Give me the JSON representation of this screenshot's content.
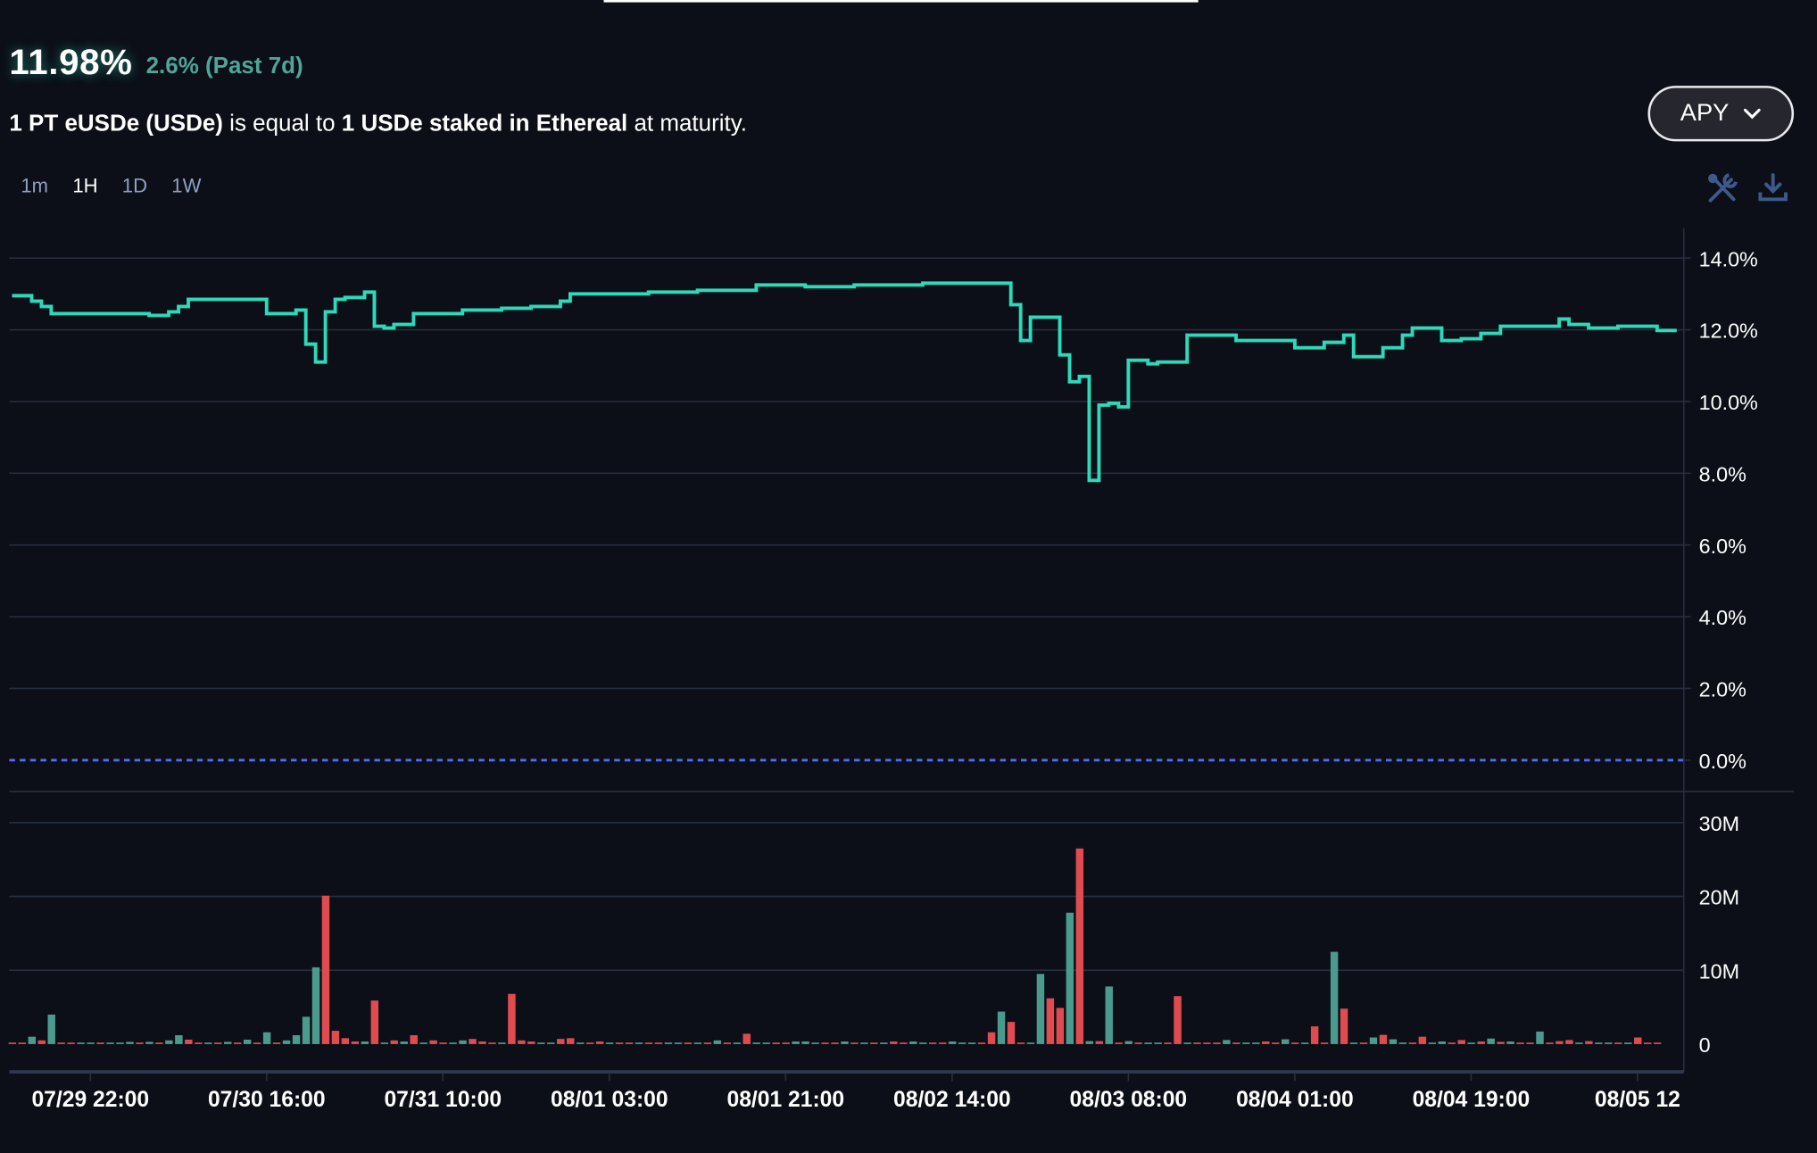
{
  "header": {
    "current_apy": "11.98%",
    "change": "2.6% (Past 7d)",
    "description": {
      "part1": "1 PT eUSDe (USDe)",
      "part2": " is equal to ",
      "part3": "1 USDe staked in Ethereal",
      "part4": " at maturity."
    }
  },
  "intervals": [
    {
      "label": "1m",
      "active": false
    },
    {
      "label": "1H",
      "active": true
    },
    {
      "label": "1D",
      "active": false
    },
    {
      "label": "1W",
      "active": false
    }
  ],
  "metric_select": {
    "label": "APY",
    "icon": "chevron-down-icon"
  },
  "toolbar": {
    "tools_icon": "tools-icon",
    "download_icon": "download-icon"
  },
  "colors": {
    "background": "#0c0f17",
    "line": "#2dd9b8",
    "bar_up": "#4a9b8e",
    "bar_down": "#e04b4f",
    "zero_line": "#4f6ef0",
    "grid": "#262d3d",
    "icon": "#3d5a8a"
  },
  "chart_data": [
    {
      "type": "line",
      "step": true,
      "ylim": [
        0,
        14
      ],
      "y_ticks": [
        "14.0%",
        "12.0%",
        "10.0%",
        "8.0%",
        "6.0%",
        "4.0%",
        "2.0%",
        "0.0%"
      ],
      "y_tick_values": [
        14,
        12,
        10,
        8,
        6,
        4,
        2,
        0
      ],
      "grid": true,
      "points": [
        [
          "07/29 14:00",
          12.95
        ],
        [
          "07/29 16:00",
          12.8
        ],
        [
          "07/29 17:00",
          12.65
        ],
        [
          "07/29 18:00",
          12.45
        ],
        [
          "07/30 04:00",
          12.4
        ],
        [
          "07/30 06:00",
          12.5
        ],
        [
          "07/30 07:00",
          12.65
        ],
        [
          "07/30 08:00",
          12.85
        ],
        [
          "07/30 12:00",
          12.85
        ],
        [
          "07/30 16:00",
          12.45
        ],
        [
          "07/30 19:00",
          12.55
        ],
        [
          "07/30 20:00",
          11.6
        ],
        [
          "07/30 21:00",
          11.1
        ],
        [
          "07/30 22:00",
          12.5
        ],
        [
          "07/30 23:00",
          12.85
        ],
        [
          "07/31 00:00",
          12.9
        ],
        [
          "07/31 02:00",
          13.05
        ],
        [
          "07/31 03:00",
          12.1
        ],
        [
          "07/31 04:00",
          12.05
        ],
        [
          "07/31 05:00",
          12.15
        ],
        [
          "07/31 07:00",
          12.45
        ],
        [
          "07/31 12:00",
          12.55
        ],
        [
          "07/31 16:00",
          12.6
        ],
        [
          "07/31 19:00",
          12.65
        ],
        [
          "07/31 22:00",
          12.8
        ],
        [
          "07/31 23:00",
          13.0
        ],
        [
          "08/01 07:00",
          13.05
        ],
        [
          "08/01 12:00",
          13.1
        ],
        [
          "08/01 18:00",
          13.25
        ],
        [
          "08/01 23:00",
          13.2
        ],
        [
          "08/02 04:00",
          13.25
        ],
        [
          "08/02 11:00",
          13.3
        ],
        [
          "08/02 19:00",
          13.3
        ],
        [
          "08/02 20:00",
          12.7
        ],
        [
          "08/02 21:00",
          11.7
        ],
        [
          "08/02 22:00",
          12.35
        ],
        [
          "08/03 01:00",
          11.3
        ],
        [
          "08/03 02:00",
          10.55
        ],
        [
          "08/03 03:00",
          10.7
        ],
        [
          "08/03 04:00",
          7.8
        ],
        [
          "08/03 05:00",
          9.9
        ],
        [
          "08/03 06:00",
          9.95
        ],
        [
          "08/03 07:00",
          9.85
        ],
        [
          "08/03 08:00",
          11.15
        ],
        [
          "08/03 10:00",
          11.05
        ],
        [
          "08/03 11:00",
          11.1
        ],
        [
          "08/03 14:00",
          11.85
        ],
        [
          "08/03 19:00",
          11.7
        ],
        [
          "08/03 22:00",
          11.7
        ],
        [
          "08/04 01:00",
          11.5
        ],
        [
          "08/04 04:00",
          11.65
        ],
        [
          "08/04 06:00",
          11.85
        ],
        [
          "08/04 07:00",
          11.25
        ],
        [
          "08/04 10:00",
          11.5
        ],
        [
          "08/04 12:00",
          11.85
        ],
        [
          "08/04 13:00",
          12.05
        ],
        [
          "08/04 16:00",
          11.7
        ],
        [
          "08/04 18:00",
          11.75
        ],
        [
          "08/04 20:00",
          11.9
        ],
        [
          "08/04 22:00",
          12.1
        ],
        [
          "08/05 04:00",
          12.3
        ],
        [
          "08/05 05:00",
          12.15
        ],
        [
          "08/05 07:00",
          12.05
        ],
        [
          "08/05 10:00",
          12.1
        ],
        [
          "08/05 14:00",
          11.98
        ],
        [
          "08/05 16:00",
          11.98
        ]
      ]
    },
    {
      "type": "bar",
      "ylim": [
        0,
        30
      ],
      "y_ticks": [
        "30M",
        "20M",
        "10M",
        "0"
      ],
      "y_tick_values": [
        30,
        20,
        10,
        0
      ],
      "unit": "M",
      "values": [
        0.2,
        0.2,
        1.0,
        0.5,
        4.0,
        0.2,
        0.2,
        0.2,
        0.2,
        0.2,
        0.2,
        0.2,
        0.3,
        0.2,
        0.3,
        0.2,
        0.5,
        1.2,
        0.6,
        0.2,
        0.2,
        0.2,
        0.3,
        0.2,
        0.6,
        0.2,
        1.6,
        0.2,
        0.5,
        1.2,
        3.7,
        10.4,
        20.1,
        1.8,
        0.8,
        0.35,
        0.35,
        5.9,
        0.2,
        0.5,
        0.35,
        1.2,
        0.2,
        0.5,
        0.2,
        0.2,
        0.5,
        0.7,
        0.35,
        0.2,
        0.2,
        6.8,
        0.5,
        0.35,
        0.2,
        0.2,
        0.7,
        0.8,
        0.2,
        0.2,
        0.35,
        0.2,
        0.2,
        0.2,
        0.2,
        0.2,
        0.2,
        0.2,
        0.2,
        0.2,
        0.2,
        0.2,
        0.5,
        0.2,
        0.2,
        1.4,
        0.2,
        0.2,
        0.2,
        0.2,
        0.35,
        0.35,
        0.2,
        0.2,
        0.2,
        0.35,
        0.2,
        0.2,
        0.2,
        0.2,
        0.35,
        0.2,
        0.35,
        0.2,
        0.2,
        0.2,
        0.35,
        0.2,
        0.2,
        0.2,
        1.6,
        4.4,
        3.0,
        0.2,
        0.2,
        9.5,
        6.2,
        4.9,
        17.8,
        26.5,
        0.4,
        0.4,
        7.8,
        0.2,
        0.4,
        0.2,
        0.2,
        0.2,
        0.2,
        6.5,
        0.2,
        0.2,
        0.2,
        0.2,
        0.55,
        0.2,
        0.2,
        0.2,
        0.35,
        0.2,
        0.65,
        0.2,
        0.2,
        2.4,
        0.2,
        12.5,
        4.8,
        0.2,
        0.2,
        0.9,
        1.25,
        0.65,
        0.2,
        0.2,
        1.0,
        0.2,
        0.35,
        0.2,
        0.55,
        0.2,
        0.35,
        0.75,
        0.3,
        0.35,
        0.2,
        0.2,
        1.7,
        0.2,
        0.4,
        0.55,
        0.2,
        0.4,
        0.2,
        0.2,
        0.2,
        0.2,
        0.9,
        0.2,
        0.2
      ],
      "directions": "rrgrgrrggrgggrgrggrrgrgrgrgrggggrrrrgrgrgrgrrggrrrgrrrggrrgrrgrrgrrggrgrgrgrggrrgggrrg",
      "directions2": "rgrgrrggrrgggrrgrrggrrgrgrgrgrggrrgrrrgrggrrgrgrrgrgrgrggrrggrrgrgrgrrgrrrgrggrgrrrggrr"
    }
  ],
  "x_axis": {
    "ticks": [
      {
        "label": "07/29 22:00",
        "time": "07/29 22:00"
      },
      {
        "label": "07/30 16:00",
        "time": "07/30 16:00"
      },
      {
        "label": "07/31 10:00",
        "time": "07/31 10:00"
      },
      {
        "label": "08/01 03:00",
        "time": "08/01 03:00"
      },
      {
        "label": "08/01 21:00",
        "time": "08/01 21:00"
      },
      {
        "label": "08/02 14:00",
        "time": "08/02 14:00"
      },
      {
        "label": "08/03 08:00",
        "time": "08/03 08:00"
      },
      {
        "label": "08/04 01:00",
        "time": "08/04 01:00"
      },
      {
        "label": "08/04 19:00",
        "time": "08/04 19:00"
      },
      {
        "label": "08/05 12",
        "time": "08/05 12:00"
      }
    ]
  }
}
